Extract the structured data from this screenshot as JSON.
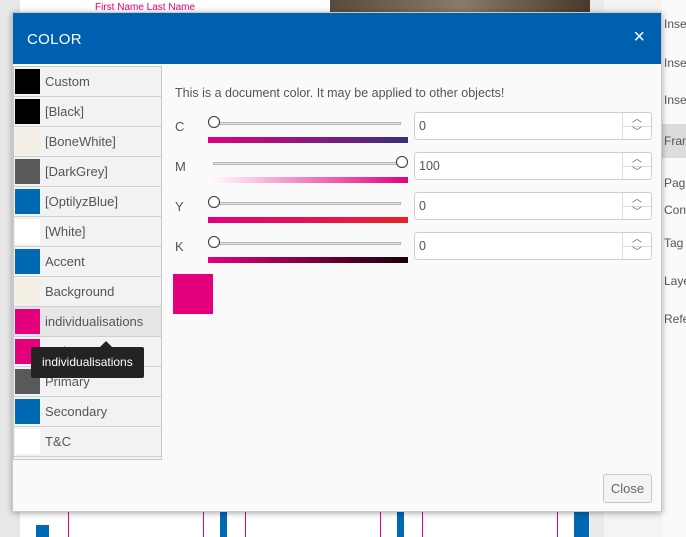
{
  "background": {
    "top_text": "First Name   Last Name",
    "right_panel_items": [
      "Inse",
      "Inse",
      "Inse",
      "Fram",
      "Pag",
      "Con",
      "Tag",
      "Laye",
      "Refe"
    ]
  },
  "dialog": {
    "title": "COLOR",
    "close_icon": "×",
    "info_text": "This is a document color. It may be applied to other objects!",
    "close_label": "Close"
  },
  "colors": [
    {
      "label": "Custom",
      "swatch": "#000000"
    },
    {
      "label": "[Black]",
      "swatch": "#000000"
    },
    {
      "label": "[BoneWhite]",
      "swatch": "#f3efe4"
    },
    {
      "label": "[DarkGrey]",
      "swatch": "#58595b"
    },
    {
      "label": "[OptilyzBlue]",
      "swatch": "#0069b4"
    },
    {
      "label": "[White]",
      "swatch": "#ffffff"
    },
    {
      "label": "Accent",
      "swatch": "#0069b4"
    },
    {
      "label": "Background",
      "swatch": "#f3efe4"
    },
    {
      "label": "individualisations",
      "swatch": "#e4007c"
    },
    {
      "label": "Main",
      "swatch": "#e4007c"
    },
    {
      "label": "Primary",
      "swatch": "#58595b"
    },
    {
      "label": "Secondary",
      "swatch": "#0069b4"
    },
    {
      "label": "T&C",
      "swatch": "#ffffff"
    }
  ],
  "tooltip": "individualisations",
  "channels": [
    {
      "letter": "C",
      "value": 0
    },
    {
      "letter": "M",
      "value": 100
    },
    {
      "letter": "Y",
      "value": 0
    },
    {
      "letter": "K",
      "value": 0
    }
  ],
  "spin_up_icon": "︿",
  "spin_down_icon": "﹀",
  "preview_color": "#e4007c"
}
